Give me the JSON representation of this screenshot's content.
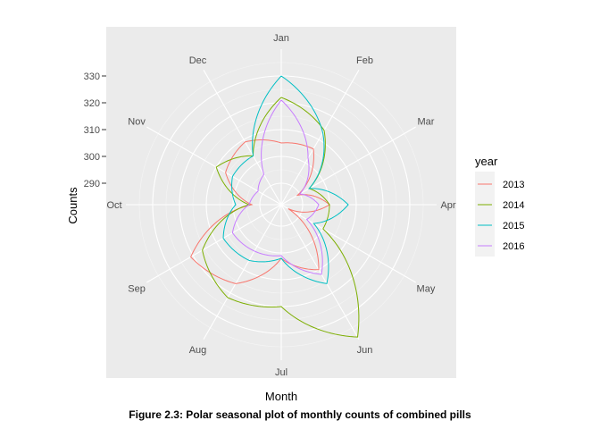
{
  "caption": "Figure 2.3: Polar seasonal plot of monthly counts of combined pills",
  "chart_data": {
    "type": "line",
    "coordinate_system": "polar",
    "xlabel": "Month",
    "ylabel": "Counts",
    "categories": [
      "Jan",
      "Feb",
      "Mar",
      "Apr",
      "May",
      "Jun",
      "Jul",
      "Aug",
      "Sep",
      "Oct",
      "Nov",
      "Dec"
    ],
    "radial_ticks": [
      290,
      300,
      310,
      320,
      330
    ],
    "ylim": [
      282,
      340
    ],
    "legend_title": "year",
    "legend_position": "right",
    "panel_background": "#ebebeb",
    "grid": true,
    "series": [
      {
        "name": "2013",
        "color": "#F8766D",
        "values": [
          305,
          306,
          289,
          300,
          285,
          310,
          302,
          316,
          321,
          293,
          306,
          309
        ]
      },
      {
        "name": "2014",
        "color": "#7CAE00",
        "values": [
          322,
          314,
          294,
          300,
          300,
          339,
          320,
          322,
          316,
          294,
          310,
          303
        ]
      },
      {
        "name": "2015",
        "color": "#00BFC4",
        "values": [
          330,
          313,
          294,
          307,
          296,
          316,
          302,
          306,
          307,
          299,
          303,
          303
        ]
      },
      {
        "name": "2016",
        "color": "#C77CFF",
        "values": [
          321,
          302,
          290,
          296,
          293,
          312,
          301,
          302,
          303,
          294,
          292,
          295
        ]
      }
    ]
  }
}
